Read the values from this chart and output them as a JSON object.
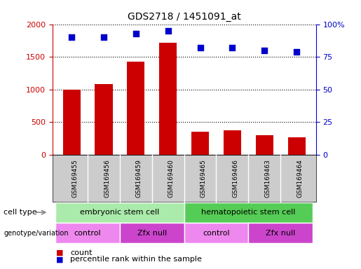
{
  "title": "GDS2718 / 1451091_at",
  "samples": [
    "GSM169455",
    "GSM169456",
    "GSM169459",
    "GSM169460",
    "GSM169465",
    "GSM169466",
    "GSM169463",
    "GSM169464"
  ],
  "counts": [
    1000,
    1080,
    1430,
    1720,
    355,
    370,
    295,
    270
  ],
  "percentile_ranks": [
    90,
    90,
    93,
    95,
    82,
    82,
    80,
    79
  ],
  "bar_color": "#cc0000",
  "dot_color": "#0000cc",
  "ylim_left": [
    0,
    2000
  ],
  "ylim_right": [
    0,
    100
  ],
  "yticks_left": [
    0,
    500,
    1000,
    1500,
    2000
  ],
  "yticks_right": [
    0,
    25,
    50,
    75,
    100
  ],
  "cell_type_groups": [
    {
      "label": "embryonic stem cell",
      "start": 0,
      "end": 3,
      "color": "#aaeaaa"
    },
    {
      "label": "hematopoietic stem cell",
      "start": 4,
      "end": 7,
      "color": "#55cc55"
    }
  ],
  "genotype_groups": [
    {
      "label": "control",
      "start": 0,
      "end": 1,
      "color": "#ee88ee"
    },
    {
      "label": "Zfx null",
      "start": 2,
      "end": 3,
      "color": "#cc44cc"
    },
    {
      "label": "control",
      "start": 4,
      "end": 5,
      "color": "#ee88ee"
    },
    {
      "label": "Zfx null",
      "start": 6,
      "end": 7,
      "color": "#cc44cc"
    }
  ],
  "bar_color_legend": "#cc0000",
  "dot_color_legend": "#0000cc",
  "xtick_bg": "#cccccc",
  "row_label_color": "#666666"
}
